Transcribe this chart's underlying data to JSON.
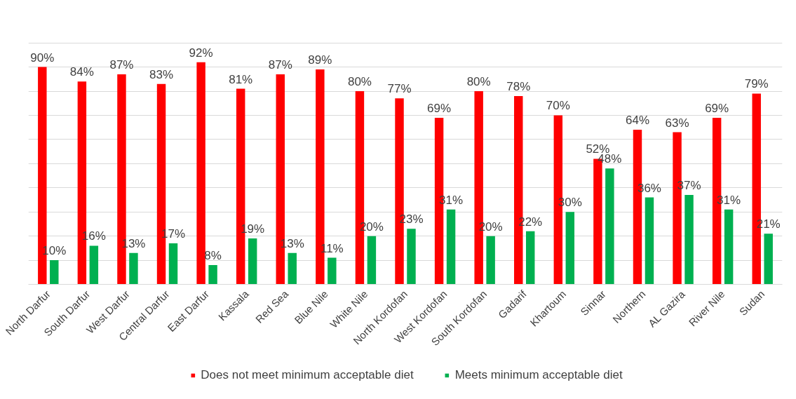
{
  "chart_data": {
    "type": "bar",
    "categories": [
      "North Darfur",
      "South Darfur",
      "West Darfur",
      "Central Darfur",
      "East Darfur",
      "Kassala",
      "Red Sea",
      "Blue Nile",
      "White Nile",
      "North Kordofan",
      "West Kordofan",
      "South Kordofan",
      "Gadarif",
      "Khartoum",
      "Sinnar",
      "Northern",
      "AL Gazira",
      "River Nile",
      "Sudan"
    ],
    "series": [
      {
        "name": "Does not meet minimum acceptable diet",
        "color": "#ff0000",
        "values": [
          90,
          84,
          87,
          83,
          92,
          81,
          87,
          89,
          80,
          77,
          69,
          80,
          78,
          70,
          52,
          64,
          63,
          69,
          79
        ],
        "value_labels": [
          "90%",
          "84%",
          "87%",
          "83%",
          "92%",
          "81%",
          "87%",
          "89%",
          "80%",
          "77%",
          "69%",
          "80%",
          "78%",
          "70%",
          "52%",
          "64%",
          "63%",
          "69%",
          "79%"
        ]
      },
      {
        "name": "Meets minimum acceptable diet",
        "color": "#00b050",
        "values": [
          10,
          16,
          13,
          17,
          8,
          19,
          13,
          11,
          20,
          23,
          31,
          20,
          22,
          30,
          48,
          36,
          37,
          31,
          21
        ],
        "value_labels": [
          "10%",
          "16%",
          "13%",
          "17%",
          "8%",
          "19%",
          "13%",
          "11%",
          "20%",
          "23%",
          "31%",
          "20%",
          "22%",
          "30%",
          "48%",
          "36%",
          "37%",
          "31%",
          "21%"
        ]
      }
    ],
    "yticks": [
      {
        "value": 0,
        "label": null
      },
      {
        "value": 10,
        "label": null
      },
      {
        "value": 20,
        "label": null
      },
      {
        "value": 30,
        "label": null
      },
      {
        "value": 40,
        "label": null
      },
      {
        "value": 50,
        "label": null
      },
      {
        "value": 60,
        "label": null
      },
      {
        "value": 70,
        "label": null
      },
      {
        "value": 80,
        "label": null
      },
      {
        "value": 90,
        "label": null
      },
      {
        "value": 100,
        "label": null
      }
    ],
    "grid": "y",
    "tick_labels": "x",
    "legend": "bottom"
  }
}
